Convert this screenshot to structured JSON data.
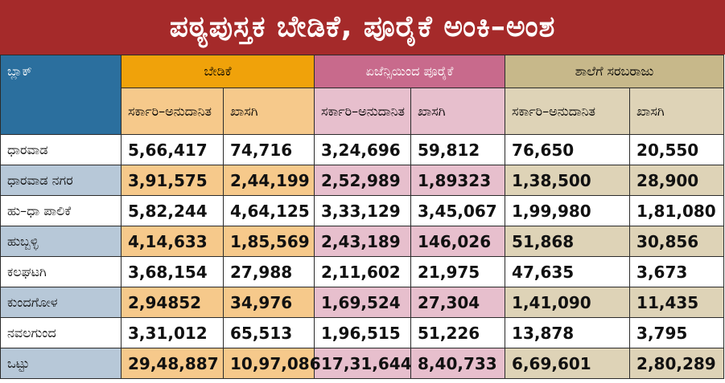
{
  "title": "ಪಠ್ಯಪುಸ್ತಕ ಬೇಡಿಕೆ, ಪೂರೈಕೆ ಅಂಕಿ–ಅಂಶ",
  "colors": {
    "title_bg": "#a52a2a",
    "block_head": "#2b6f9e",
    "demand_head": "#f0a20a",
    "supply_head": "#c86a8c",
    "school_head": "#c7b88a",
    "demand_light": "#f6c98b",
    "supply_light": "#e7bfcd",
    "school_light": "#ded3b7",
    "row_name_alt": "#b7c8d8"
  },
  "table": {
    "block_label": "ಬ್ಲಾಕ್",
    "groups": [
      {
        "label": "ಬೇಡಿಕೆ"
      },
      {
        "label": "ಏಜೆನ್ಸಿಯಿಂದ ಪೂರೈಕೆ"
      },
      {
        "label": "ಶಾಲೆಗೆ ಸರಬರಾಜು"
      }
    ],
    "sub_headers": [
      "ಸರ್ಕಾರಿ–ಅನುದಾನಿತ",
      "ಖಾಸಗಿ",
      "ಸರ್ಕಾರಿ–ಅನುದಾನಿತ",
      "ಖಾಸಗಿ",
      "ಸರ್ಕಾರಿ–ಅನುದಾನಿತ",
      "ಖಾಸಗಿ"
    ],
    "rows": [
      {
        "name": "ಧಾರವಾಡ",
        "values": [
          "5,66,417",
          "74,716",
          "3,24,696",
          "59,812",
          "76,650",
          "20,550"
        ]
      },
      {
        "name": "ಧಾರವಾಡ ನಗರ",
        "values": [
          "3,91,575",
          "2,44,199",
          "2,52,989",
          "1,89323",
          "1,38,500",
          "28,900"
        ]
      },
      {
        "name": "ಹು–ಧಾ ಪಾಲಿಕೆ",
        "values": [
          "5,82,244",
          "4,64,125",
          "3,33,129",
          "3,45,067",
          "1,99,980",
          "1,81,080"
        ]
      },
      {
        "name": "ಹುಬ್ಬಳ್ಳಿ",
        "values": [
          "4,14,633",
          "1,85,569",
          "2,43,189",
          "146,026",
          "51,868",
          "30,856"
        ]
      },
      {
        "name": "ಕಲಘಟಗಿ",
        "values": [
          "3,68,154",
          "27,988",
          "2,11,602",
          "21,975",
          "47,635",
          "3,673"
        ]
      },
      {
        "name": "ಕುಂದಗೋಳ",
        "values": [
          "2,94852",
          "34,976",
          "1,69,524",
          "27,304",
          "1,41,090",
          "11,435"
        ]
      },
      {
        "name": "ನವಲಗುಂದ",
        "values": [
          "3,31,012",
          "65,513",
          "1,96,515",
          "51,226",
          "13,878",
          "3,795"
        ]
      },
      {
        "name": "ಒಟ್ಟು",
        "values": [
          "29,48,887",
          "10,97,086",
          "17,31,644",
          "8,40,733",
          "6,69,601",
          "2,80,289"
        ]
      }
    ]
  }
}
